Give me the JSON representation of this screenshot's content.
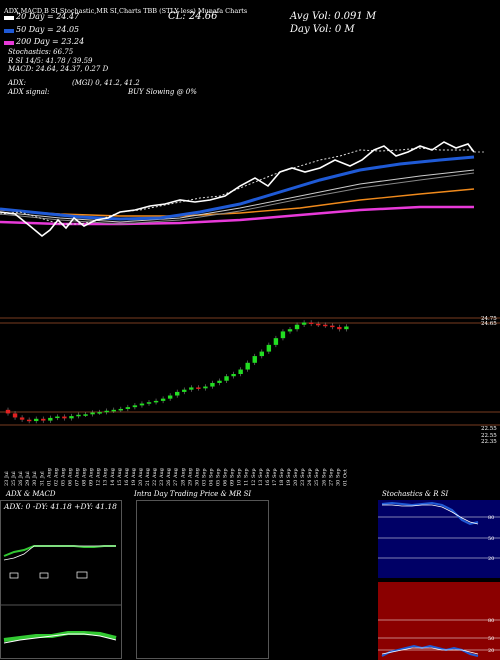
{
  "header": {
    "tabs_line": "ADX,MACD,B   SI,Stochastic,MR   SI,Charts TBB   (STLY less) Munafa Charts",
    "cl": "CL: 24.66",
    "avg_vol": "Avg Vol: 0.091 M",
    "day_vol": "Day Vol: 0   M"
  },
  "legend": [
    {
      "label": "20 Day = 24.47",
      "color": "#ffffff"
    },
    {
      "label": "50 Day = 24.05",
      "color": "#1f5ad6"
    },
    {
      "label": "200 Day = 23.24",
      "color": "#e83ad9"
    }
  ],
  "stats": {
    "stochastics": "Stochastics: 66.75",
    "r_si": "R              SI 14/5: 41.78 / 39.59",
    "macd": "MACD: 24.64, 24.37, 0.27 D",
    "adx": "ADX:",
    "adx_vals": "(MGI) 0, 41.2, 41.2",
    "adx_signal": "ADX  signal:",
    "buy_signal": "BUY Slowing @ 0%"
  },
  "price_axis": {
    "upper_labels": [
      "24.75",
      "24.65"
    ],
    "lower_labels": [
      "22.55",
      "22.55",
      "22.35"
    ]
  },
  "dates": [
    "23 Jul",
    "25 Jul",
    "26 Jul",
    "29 Jul",
    "30 Jul",
    "31 Jul",
    "01 Aug",
    "02 Aug",
    "05 Aug",
    "06 Aug",
    "07 Aug",
    "08 Aug",
    "09 Aug",
    "12 Aug",
    "13 Aug",
    "14 Aug",
    "15 Aug",
    "16 Aug",
    "19 Aug",
    "20 Aug",
    "21 Aug",
    "22 Aug",
    "23 Aug",
    "26 Aug",
    "27 Aug",
    "28 Aug",
    "29 Aug",
    "30 Aug",
    "03 Sep",
    "04 Sep",
    "05 Sep",
    "06 Sep",
    "09 Sep",
    "10 Sep",
    "11 Sep",
    "12 Sep",
    "13 Sep",
    "16 Sep",
    "17 Sep",
    "18 Sep",
    "19 Sep",
    "20 Sep",
    "23 Sep",
    "24 Sep",
    "25 Sep",
    "26 Sep",
    "27 Sep",
    "30 Sep",
    "01 Oct"
  ],
  "panels": {
    "adx_title": "ADX  & MACD",
    "adx_vals": "ADX: 0  -DY: 41.18  +DY: 41.18",
    "intra_title": "Intra  Day Trading Price  & MR                    SI",
    "stoch_title": "Stochastics & R                    SI",
    "stoch_labels": [
      "80",
      "50",
      "20"
    ],
    "rsi_labels": [
      "80",
      "50",
      "20"
    ]
  },
  "chart_data": {
    "type": "candlestick",
    "candles_note": "Daily OHLC, approximate values read from chart",
    "closes": [
      22.72,
      22.63,
      22.58,
      22.55,
      22.6,
      22.56,
      22.62,
      22.65,
      22.61,
      22.66,
      22.69,
      22.7,
      22.74,
      22.75,
      22.78,
      22.8,
      22.82,
      22.86,
      22.9,
      22.94,
      22.97,
      23.0,
      23.05,
      23.12,
      23.2,
      23.25,
      23.3,
      23.28,
      23.32,
      23.4,
      23.45,
      23.55,
      23.6,
      23.7,
      23.85,
      24.0,
      24.1,
      24.25,
      24.4,
      24.55,
      24.6,
      24.7,
      24.75,
      24.72,
      24.7,
      24.68,
      24.65,
      24.6,
      24.66
    ]
  }
}
